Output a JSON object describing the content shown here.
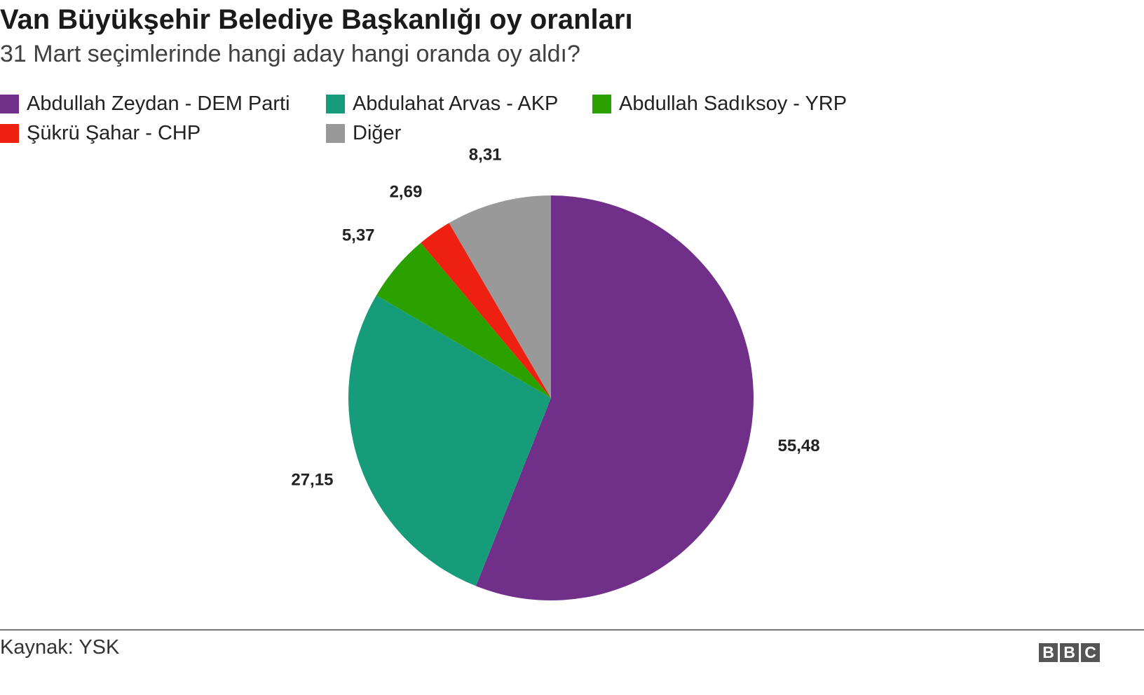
{
  "chart_data": {
    "type": "pie",
    "title": "Van Büyükşehir Belediye Başkanlığı oy oranları",
    "subtitle": "31 Mart seçimlerinde hangi aday hangi oranda oy aldı?",
    "legend_placement": "top-left",
    "slices": [
      {
        "name": "Abdullah Zeydan - DEM Parti",
        "value": 55.48,
        "label": "55,48",
        "color": "#70308a"
      },
      {
        "name": "Abdulahat Arvas - AKP",
        "value": 27.15,
        "label": "27,15",
        "color": "#169b7b"
      },
      {
        "name": "Abdullah Sadıksoy - YRP",
        "value": 5.37,
        "label": "5,37",
        "color": "#2ba100"
      },
      {
        "name": "Şükrü Şahar - CHP",
        "value": 2.69,
        "label": "2,69",
        "color": "#ee2011"
      },
      {
        "name": "Diğer",
        "value": 8.31,
        "label": "8,31",
        "color": "#999999"
      }
    ],
    "legend_order": [
      0,
      1,
      2,
      3,
      4
    ]
  },
  "footer": {
    "source": "Kaynak: YSK",
    "logo": "BBC"
  }
}
